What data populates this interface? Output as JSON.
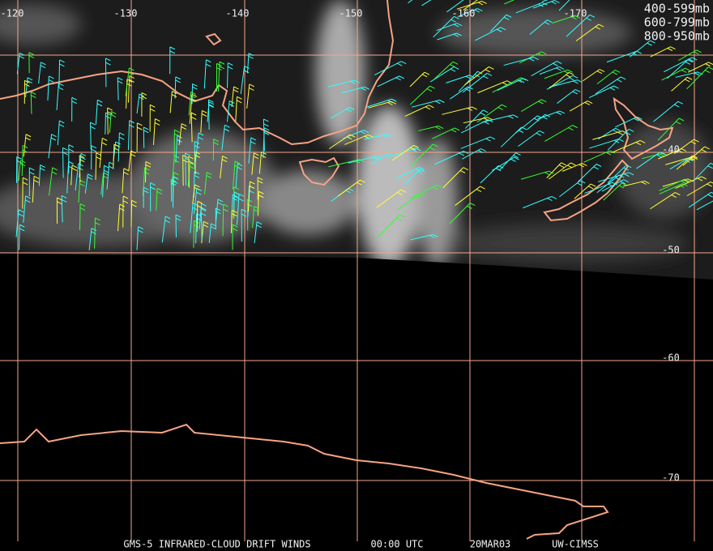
{
  "map": {
    "longitude_labels": [
      "-120",
      "-130",
      "-140",
      "-150",
      "-160",
      "-170"
    ],
    "latitude_labels": [
      "-40",
      "-50",
      "-60",
      "-70"
    ],
    "legend": [
      {
        "label": "400-599mb",
        "color": "#33ff33"
      },
      {
        "label": "600-799mb",
        "color": "#ffff33"
      },
      {
        "label": "800-950mb",
        "color": "#33ffff"
      }
    ],
    "footer": [
      "GMS-5 INFRARED-CLOUD DRIFT WINDS",
      "00:00 UTC",
      "20MAR03",
      "UW-CIMSS"
    ]
  }
}
